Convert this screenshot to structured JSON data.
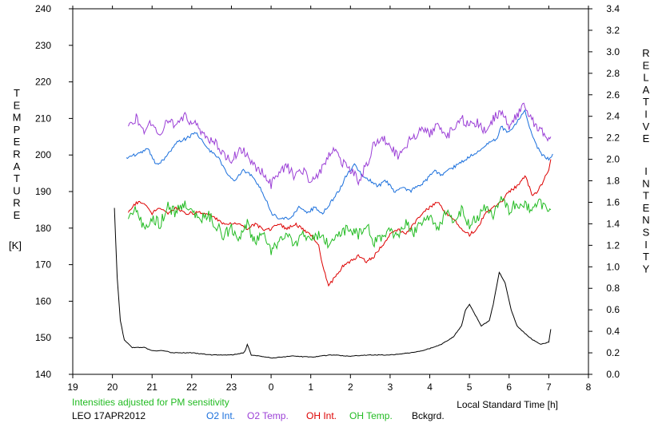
{
  "chart_data": {
    "type": "line",
    "xlabel": "Local Standard Time [h]",
    "ylabel_left": "TEMPERATURE [K]",
    "ylabel_left_letters": [
      "T",
      "E",
      "M",
      "P",
      "E",
      "R",
      "A",
      "T",
      "U",
      "R",
      "E"
    ],
    "ylabel_left_unit": "[K]",
    "ylabel_right_letters_1": [
      "R",
      "E",
      "L",
      "A",
      "T",
      "I",
      "V",
      "E"
    ],
    "ylabel_right_letters_2": [
      "I",
      "N",
      "T",
      "E",
      "N",
      "S",
      "I",
      "T",
      "Y"
    ],
    "note": "Intensities adjusted for PM sensitivity",
    "station": "LEO 17APR2012",
    "x_ticks": [
      "19",
      "20",
      "21",
      "22",
      "23",
      "0",
      "1",
      "2",
      "3",
      "4",
      "5",
      "6",
      "7",
      "8"
    ],
    "y_left_ticks": [
      "240",
      "230",
      "220",
      "210",
      "200",
      "190",
      "180",
      "170",
      "160",
      "150",
      "140"
    ],
    "y_right_ticks": [
      "3.4",
      "3.2",
      "3.0",
      "2.8",
      "2.6",
      "2.4",
      "2.2",
      "2.0",
      "1.8",
      "1.6",
      "1.4",
      "1.2",
      "1.0",
      "0.8",
      "0.6",
      "0.4",
      "0.2",
      "0.0"
    ],
    "xlim": [
      19,
      32
    ],
    "ylim_left": [
      140,
      240
    ],
    "ylim_right": [
      0,
      3.4
    ],
    "grid": false,
    "series": [
      {
        "name": "O2 Int.",
        "color": "#1a6fdc",
        "axis": "right",
        "x": [
          20.35,
          20.6,
          20.9,
          21.1,
          21.3,
          21.6,
          21.9,
          22.1,
          22.4,
          22.7,
          22.9,
          23.1,
          23.3,
          23.5,
          23.7,
          23.9,
          24.0,
          24.2,
          24.5,
          24.7,
          24.9,
          25.1,
          25.3,
          25.5,
          25.7,
          25.9,
          26.1,
          26.3,
          26.5,
          26.7,
          26.9,
          27.1,
          27.3,
          27.5,
          27.7,
          27.9,
          28.1,
          28.3,
          28.5,
          28.7,
          28.9,
          29.1,
          29.3,
          29.5,
          29.7,
          29.8,
          30.0,
          30.2,
          30.4,
          30.6,
          30.8,
          31.0,
          31.1
        ],
        "y": [
          2.0,
          2.05,
          2.1,
          1.95,
          2.0,
          2.15,
          2.2,
          2.25,
          2.1,
          2.0,
          1.85,
          1.8,
          1.9,
          1.85,
          1.75,
          1.6,
          1.5,
          1.45,
          1.45,
          1.55,
          1.5,
          1.55,
          1.5,
          1.6,
          1.7,
          1.85,
          1.95,
          1.85,
          1.8,
          1.75,
          1.8,
          1.7,
          1.75,
          1.7,
          1.75,
          1.8,
          1.9,
          1.85,
          1.9,
          1.95,
          2.0,
          2.05,
          2.1,
          2.15,
          2.2,
          2.3,
          2.25,
          2.35,
          2.45,
          2.2,
          2.05,
          2.0,
          2.05
        ]
      },
      {
        "name": "O2 Temp.",
        "color": "#9b3fd6",
        "axis": "left",
        "x": [
          20.4,
          20.6,
          20.8,
          21.0,
          21.2,
          21.4,
          21.6,
          21.8,
          22.0,
          22.2,
          22.4,
          22.6,
          22.8,
          23.0,
          23.2,
          23.4,
          23.6,
          23.8,
          24.0,
          24.2,
          24.4,
          24.6,
          24.8,
          25.0,
          25.2,
          25.4,
          25.6,
          25.8,
          26.0,
          26.2,
          26.4,
          26.6,
          26.8,
          27.0,
          27.2,
          27.4,
          27.6,
          27.8,
          28.0,
          28.2,
          28.4,
          28.6,
          28.8,
          29.0,
          29.2,
          29.4,
          29.6,
          29.8,
          30.0,
          30.2,
          30.4,
          30.6,
          30.8,
          31.0,
          31.05
        ],
        "y": [
          208,
          210,
          207,
          209,
          206,
          210,
          208,
          211,
          209,
          207,
          205,
          203,
          200,
          198,
          202,
          200,
          197,
          195,
          192,
          195,
          197,
          194,
          196,
          193,
          195,
          199,
          201,
          198,
          196,
          193,
          197,
          203,
          205,
          202,
          200,
          203,
          205,
          207,
          206,
          208,
          205,
          207,
          210,
          208,
          209,
          206,
          210,
          212,
          208,
          211,
          214,
          209,
          207,
          204,
          205
        ]
      },
      {
        "name": "OH Int.",
        "color": "#dd0000",
        "axis": "right",
        "x": [
          20.4,
          20.6,
          20.8,
          21.0,
          21.2,
          21.4,
          21.6,
          21.8,
          22.0,
          22.2,
          22.4,
          22.6,
          22.8,
          23.0,
          23.2,
          23.4,
          23.6,
          23.8,
          24.0,
          24.2,
          24.4,
          24.6,
          24.8,
          25.0,
          25.2,
          25.3,
          25.45,
          25.6,
          25.8,
          26.0,
          26.2,
          26.4,
          26.6,
          26.8,
          27.0,
          27.2,
          27.4,
          27.6,
          27.8,
          28.0,
          28.2,
          28.4,
          28.6,
          28.8,
          29.0,
          29.2,
          29.4,
          29.6,
          29.8,
          30.0,
          30.2,
          30.4,
          30.6,
          30.8,
          31.0,
          31.05
        ],
        "y": [
          1.5,
          1.6,
          1.6,
          1.5,
          1.55,
          1.5,
          1.55,
          1.5,
          1.5,
          1.5,
          1.5,
          1.45,
          1.4,
          1.4,
          1.4,
          1.35,
          1.4,
          1.35,
          1.35,
          1.4,
          1.35,
          1.4,
          1.35,
          1.3,
          1.2,
          1.0,
          0.82,
          0.9,
          1.0,
          1.05,
          1.1,
          1.05,
          1.1,
          1.2,
          1.3,
          1.35,
          1.3,
          1.4,
          1.5,
          1.55,
          1.6,
          1.5,
          1.45,
          1.35,
          1.3,
          1.35,
          1.5,
          1.55,
          1.6,
          1.7,
          1.75,
          1.85,
          1.65,
          1.75,
          1.9,
          2.0
        ]
      },
      {
        "name": "OH Temp.",
        "color": "#22bb22",
        "axis": "left",
        "x": [
          20.4,
          20.6,
          20.8,
          21.0,
          21.2,
          21.4,
          21.6,
          21.8,
          22.0,
          22.2,
          22.4,
          22.6,
          22.8,
          23.0,
          23.2,
          23.4,
          23.6,
          23.8,
          24.0,
          24.2,
          24.4,
          24.6,
          24.8,
          25.0,
          25.2,
          25.4,
          25.6,
          25.8,
          26.0,
          26.2,
          26.4,
          26.6,
          26.8,
          27.0,
          27.2,
          27.4,
          27.6,
          27.8,
          28.0,
          28.2,
          28.4,
          28.6,
          28.8,
          29.0,
          29.2,
          29.4,
          29.6,
          29.8,
          30.0,
          30.2,
          30.4,
          30.6,
          30.8,
          31.0,
          31.05
        ],
        "y": [
          182,
          185,
          180,
          183,
          181,
          186,
          184,
          187,
          185,
          182,
          184,
          181,
          178,
          180,
          177,
          181,
          176,
          178,
          174,
          176,
          178,
          175,
          179,
          177,
          178,
          176,
          177,
          179,
          180,
          178,
          181,
          176,
          178,
          180,
          177,
          182,
          179,
          181,
          183,
          180,
          184,
          182,
          185,
          181,
          183,
          186,
          184,
          188,
          185,
          187,
          186,
          185,
          187,
          184,
          185
        ]
      },
      {
        "name": "Bckgrd.",
        "color": "#000000",
        "axis": "right",
        "x": [
          20.05,
          20.12,
          20.2,
          20.3,
          20.5,
          20.8,
          21.0,
          21.3,
          21.5,
          22.0,
          22.5,
          23.0,
          23.3,
          23.35,
          23.4,
          23.5,
          23.9,
          24.0,
          24.5,
          25.0,
          25.5,
          26.0,
          26.5,
          27.0,
          27.5,
          27.8,
          28.0,
          28.3,
          28.6,
          28.8,
          28.9,
          29.0,
          29.3,
          29.5,
          29.6,
          29.75,
          29.9,
          30.05,
          30.2,
          30.4,
          30.6,
          30.8,
          31.0,
          31.05
        ],
        "y": [
          1.55,
          0.9,
          0.5,
          0.32,
          0.25,
          0.25,
          0.22,
          0.22,
          0.2,
          0.2,
          0.18,
          0.18,
          0.2,
          0.22,
          0.28,
          0.18,
          0.16,
          0.15,
          0.17,
          0.16,
          0.18,
          0.17,
          0.18,
          0.18,
          0.2,
          0.22,
          0.24,
          0.28,
          0.35,
          0.45,
          0.6,
          0.65,
          0.45,
          0.5,
          0.65,
          0.95,
          0.85,
          0.6,
          0.45,
          0.38,
          0.32,
          0.28,
          0.3,
          0.42
        ]
      }
    ]
  }
}
